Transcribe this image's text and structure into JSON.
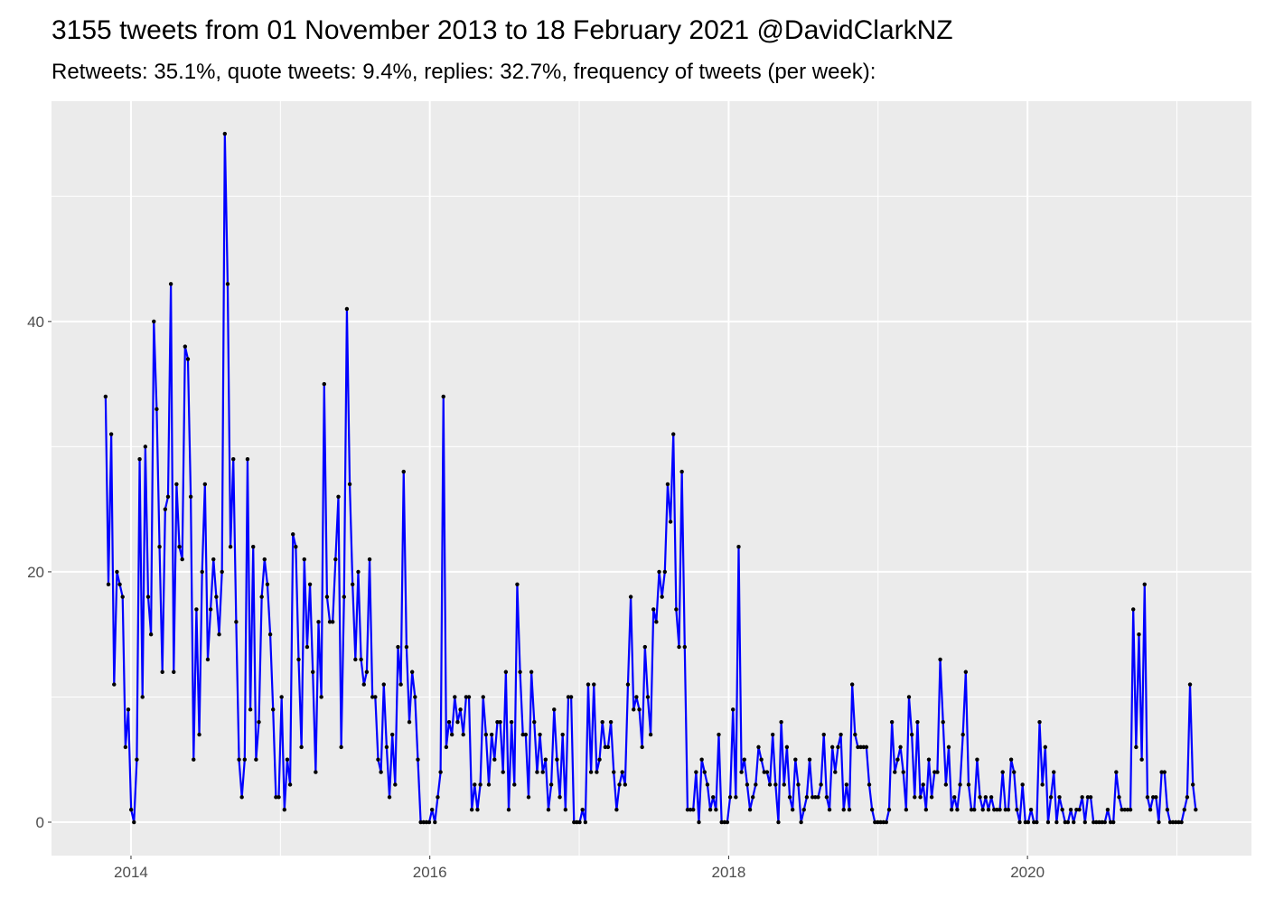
{
  "chart_data": {
    "type": "line",
    "title": "3155 tweets from 01 November 2013 to 18 February 2021 @DavidClarkNZ",
    "subtitle": "Retweets: 35.1%, quote tweets: 9.4%, replies: 32.7%, frequency of tweets (per week):",
    "x": [
      2013.83,
      2013.849,
      2013.868,
      2013.887,
      2013.906,
      2013.925,
      2013.944,
      2013.963,
      2013.982,
      2014.001,
      2014.02,
      2014.039,
      2014.058,
      2014.077,
      2014.096,
      2014.115,
      2014.134,
      2014.153,
      2014.172,
      2014.191,
      2014.21,
      2014.229,
      2014.248,
      2014.267,
      2014.286,
      2014.305,
      2014.324,
      2014.343,
      2014.362,
      2014.381,
      2014.4,
      2014.419,
      2014.438,
      2014.457,
      2014.476,
      2014.495,
      2014.514,
      2014.533,
      2014.552,
      2014.571,
      2014.59,
      2014.609,
      2014.628,
      2014.647,
      2014.666,
      2014.685,
      2014.704,
      2014.723,
      2014.742,
      2014.761,
      2014.78,
      2014.799,
      2014.818,
      2014.837,
      2014.856,
      2014.875,
      2014.894,
      2014.913,
      2014.932,
      2014.951,
      2014.97,
      2014.989,
      2015.008,
      2015.027,
      2015.046,
      2015.065,
      2015.084,
      2015.103,
      2015.122,
      2015.141,
      2015.16,
      2015.179,
      2015.198,
      2015.217,
      2015.236,
      2015.255,
      2015.274,
      2015.293,
      2015.312,
      2015.331,
      2015.35,
      2015.369,
      2015.388,
      2015.407,
      2015.426,
      2015.445,
      2015.464,
      2015.483,
      2015.502,
      2015.521,
      2015.54,
      2015.559,
      2015.578,
      2015.597,
      2015.616,
      2015.635,
      2015.654,
      2015.673,
      2015.692,
      2015.711,
      2015.73,
      2015.749,
      2015.768,
      2015.787,
      2015.806,
      2015.825,
      2015.844,
      2015.863,
      2015.882,
      2015.901,
      2015.92,
      2015.939,
      2015.958,
      2015.977,
      2015.996,
      2016.015,
      2016.034,
      2016.053,
      2016.072,
      2016.091,
      2016.11,
      2016.129,
      2016.148,
      2016.167,
      2016.186,
      2016.205,
      2016.224,
      2016.243,
      2016.262,
      2016.281,
      2016.3,
      2016.319,
      2016.338,
      2016.357,
      2016.376,
      2016.395,
      2016.414,
      2016.433,
      2016.452,
      2016.471,
      2016.49,
      2016.509,
      2016.528,
      2016.547,
      2016.566,
      2016.585,
      2016.604,
      2016.623,
      2016.642,
      2016.661,
      2016.68,
      2016.699,
      2016.718,
      2016.737,
      2016.756,
      2016.775,
      2016.794,
      2016.813,
      2016.832,
      2016.851,
      2016.87,
      2016.889,
      2016.908,
      2016.927,
      2016.946,
      2016.965,
      2016.984,
      2017.003,
      2017.022,
      2017.041,
      2017.06,
      2017.079,
      2017.098,
      2017.117,
      2017.136,
      2017.155,
      2017.174,
      2017.193,
      2017.212,
      2017.231,
      2017.25,
      2017.269,
      2017.288,
      2017.307,
      2017.326,
      2017.345,
      2017.364,
      2017.383,
      2017.402,
      2017.421,
      2017.44,
      2017.459,
      2017.478,
      2017.497,
      2017.516,
      2017.535,
      2017.554,
      2017.573,
      2017.592,
      2017.611,
      2017.63,
      2017.649,
      2017.668,
      2017.687,
      2017.706,
      2017.725,
      2017.744,
      2017.763,
      2017.782,
      2017.801,
      2017.82,
      2017.839,
      2017.858,
      2017.877,
      2017.896,
      2017.915,
      2017.934,
      2017.953,
      2017.972,
      2017.991,
      2018.01,
      2018.029,
      2018.048,
      2018.067,
      2018.086,
      2018.105,
      2018.124,
      2018.143,
      2018.162,
      2018.181,
      2018.2,
      2018.219,
      2018.238,
      2018.257,
      2018.276,
      2018.295,
      2018.314,
      2018.333,
      2018.352,
      2018.371,
      2018.39,
      2018.409,
      2018.428,
      2018.447,
      2018.466,
      2018.485,
      2018.504,
      2018.523,
      2018.542,
      2018.561,
      2018.58,
      2018.599,
      2018.618,
      2018.637,
      2018.656,
      2018.675,
      2018.694,
      2018.713,
      2018.732,
      2018.751,
      2018.77,
      2018.789,
      2018.808,
      2018.827,
      2018.846,
      2018.865,
      2018.884,
      2018.903,
      2018.922,
      2018.941,
      2018.96,
      2018.979,
      2018.998,
      2019.017,
      2019.036,
      2019.055,
      2019.074,
      2019.093,
      2019.112,
      2019.131,
      2019.15,
      2019.169,
      2019.188,
      2019.207,
      2019.226,
      2019.245,
      2019.264,
      2019.283,
      2019.302,
      2019.321,
      2019.34,
      2019.359,
      2019.378,
      2019.397,
      2019.416,
      2019.435,
      2019.454,
      2019.473,
      2019.492,
      2019.511,
      2019.53,
      2019.549,
      2019.568,
      2019.587,
      2019.606,
      2019.625,
      2019.644,
      2019.663,
      2019.682,
      2019.701,
      2019.72,
      2019.739,
      2019.758,
      2019.777,
      2019.796,
      2019.815,
      2019.834,
      2019.853,
      2019.872,
      2019.891,
      2019.91,
      2019.929,
      2019.948,
      2019.967,
      2019.986,
      2020.005,
      2020.024,
      2020.043,
      2020.062,
      2020.081,
      2020.1,
      2020.119,
      2020.138,
      2020.157,
      2020.176,
      2020.195,
      2020.214,
      2020.233,
      2020.252,
      2020.271,
      2020.29,
      2020.309,
      2020.328,
      2020.347,
      2020.366,
      2020.385,
      2020.404,
      2020.423,
      2020.442,
      2020.461,
      2020.48,
      2020.499,
      2020.518,
      2020.537,
      2020.556,
      2020.575,
      2020.594,
      2020.613,
      2020.632,
      2020.651,
      2020.67,
      2020.689,
      2020.708,
      2020.727,
      2020.746,
      2020.765,
      2020.784,
      2020.803,
      2020.822,
      2020.841,
      2020.86,
      2020.879,
      2020.898,
      2020.917,
      2020.936,
      2020.955,
      2020.974,
      2020.993,
      2021.012,
      2021.031,
      2021.05,
      2021.069,
      2021.088,
      2021.107,
      2021.126
    ],
    "values": [
      34,
      19,
      31,
      11,
      20,
      19,
      18,
      6,
      9,
      1,
      0,
      5,
      29,
      10,
      30,
      18,
      15,
      40,
      33,
      22,
      12,
      25,
      26,
      43,
      12,
      27,
      22,
      21,
      38,
      37,
      26,
      5,
      17,
      7,
      20,
      27,
      13,
      17,
      21,
      18,
      15,
      20,
      55,
      43,
      22,
      29,
      16,
      5,
      2,
      5,
      29,
      9,
      22,
      5,
      8,
      18,
      21,
      19,
      15,
      9,
      2,
      2,
      10,
      1,
      5,
      3,
      23,
      22,
      13,
      6,
      21,
      14,
      19,
      12,
      4,
      16,
      10,
      35,
      18,
      16,
      16,
      21,
      26,
      6,
      18,
      41,
      27,
      19,
      13,
      20,
      13,
      11,
      12,
      21,
      10,
      10,
      5,
      4,
      11,
      6,
      2,
      7,
      3,
      14,
      11,
      28,
      14,
      8,
      12,
      10,
      5,
      0,
      0,
      0,
      0,
      1,
      0,
      2,
      4,
      34,
      6,
      8,
      7,
      10,
      8,
      9,
      7,
      10,
      10,
      1,
      3,
      1,
      3,
      10,
      7,
      3,
      7,
      5,
      8,
      8,
      4,
      12,
      1,
      8,
      3,
      19,
      12,
      7,
      7,
      2,
      12,
      8,
      4,
      7,
      4,
      5,
      1,
      3,
      9,
      5,
      2,
      7,
      1,
      10,
      10,
      0,
      0,
      0,
      1,
      0,
      11,
      4,
      11,
      4,
      5,
      8,
      6,
      6,
      8,
      4,
      1,
      3,
      4,
      3,
      11,
      18,
      9,
      10,
      9,
      6,
      14,
      10,
      7,
      17,
      16,
      20,
      18,
      20,
      27,
      24,
      31,
      17,
      14,
      28,
      14,
      1,
      1,
      1,
      4,
      0,
      5,
      4,
      3,
      1,
      2,
      1,
      7,
      0,
      0,
      0,
      2,
      9,
      2,
      22,
      4,
      5,
      3,
      1,
      2,
      3,
      6,
      5,
      4,
      4,
      3,
      7,
      3,
      0,
      8,
      3,
      6,
      2,
      1,
      5,
      3,
      0,
      1,
      2,
      5,
      2,
      2,
      2,
      3,
      7,
      2,
      1,
      6,
      4,
      6,
      7,
      1,
      3,
      1,
      11,
      7,
      6,
      6,
      6,
      6,
      3,
      1,
      0,
      0,
      0,
      0,
      0,
      1,
      8,
      4,
      5,
      6,
      4,
      1,
      10,
      7,
      2,
      8,
      2,
      3,
      1,
      5,
      2,
      4,
      4,
      13,
      8,
      3,
      6,
      1,
      2,
      1,
      3,
      7,
      12,
      3,
      1,
      1,
      5,
      2,
      1,
      2,
      1,
      2,
      1,
      1,
      1,
      4,
      1,
      1,
      5,
      4,
      1,
      0,
      3,
      0,
      0,
      1,
      0,
      0,
      8,
      3,
      6,
      0,
      2,
      4,
      0,
      2,
      1,
      0,
      0,
      1,
      0,
      1,
      1,
      2,
      0,
      2,
      2,
      0,
      0,
      0,
      0,
      0,
      1,
      0,
      0,
      4,
      2,
      1,
      1,
      1,
      1,
      17,
      6,
      15,
      5,
      19,
      2,
      1,
      2,
      2,
      0,
      4,
      4,
      1,
      0,
      0,
      0,
      0,
      0,
      1,
      2,
      11,
      3,
      1
    ],
    "color": "#0000ff",
    "point_color": "#000000",
    "xlim": [
      2013.468,
      2021.499
    ],
    "xticks": [
      2014,
      2016,
      2018,
      2020
    ],
    "ylim": [
      -2.67,
      57.6
    ],
    "yticks": [
      0,
      20,
      40
    ],
    "grid": true
  }
}
